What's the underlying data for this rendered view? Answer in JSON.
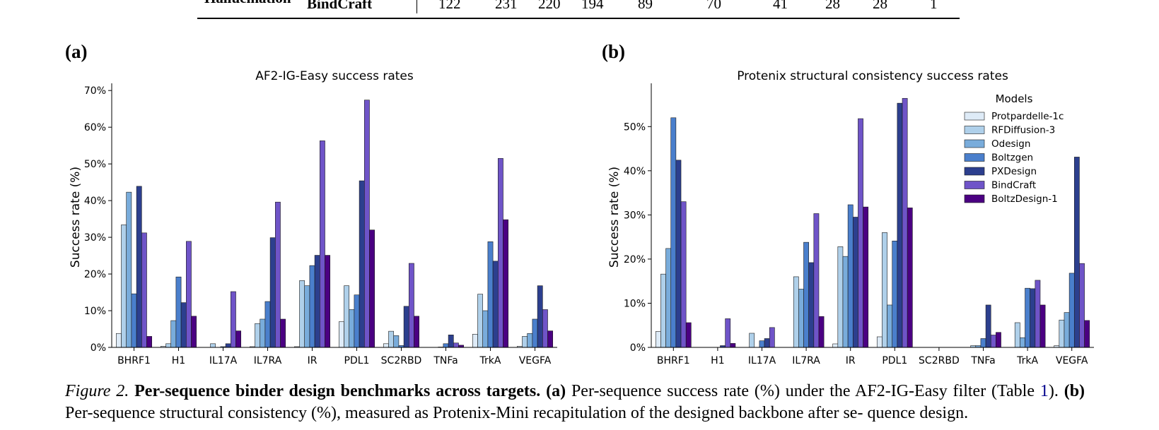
{
  "table_fragment": {
    "row_label_partial": "Hallucination",
    "row_name": "BindCraft",
    "values": [
      "122",
      "231",
      "220",
      "194",
      "89",
      "70",
      "41",
      "28",
      "28",
      "1"
    ]
  },
  "panels": {
    "a": {
      "label": "(a)"
    },
    "b": {
      "label": "(b)"
    }
  },
  "caption": {
    "figure_label": "Figure 2.",
    "title": "Per-sequence binder design benchmarks across targets.",
    "a_label": "(a)",
    "a_text": "Per-sequence success rate (%) under the AF2-IG-Easy filter",
    "table_open": "(Table ",
    "table_ref": "1",
    "table_close": ").",
    "b_label": "(b)",
    "b_text": "Per-sequence structural consistency (%), measured as Protenix-Mini recapitulation of the designed backbone after se-",
    "last_line": "quence design."
  },
  "colors": {
    "Protpardelle-1c": "#deebf7",
    "RFDiffusion-3": "#afd0ea",
    "Odesign": "#79acdb",
    "Boltzgen": "#4a7fcc",
    "PXDesign": "#2c3f8e",
    "BindCraft": "#6f54c8",
    "BoltzDesign-1": "#4b0082"
  },
  "chart_data": [
    {
      "type": "bar",
      "title": "AF2-IG-Easy success rates",
      "xlabel": "",
      "ylabel": "Success rate (%)",
      "ylim": [
        0,
        71
      ],
      "yticks": [
        0,
        10,
        20,
        30,
        40,
        50,
        60,
        70
      ],
      "ytick_labels": [
        "0%",
        "10%",
        "20%",
        "30%",
        "40%",
        "50%",
        "60%",
        "70%"
      ],
      "legend": false,
      "categories": [
        "BHRF1",
        "H1",
        "IL17A",
        "IL7RA",
        "IR",
        "PDL1",
        "SC2RBD",
        "TNFa",
        "TrkA",
        "VEGFA"
      ],
      "series": [
        {
          "name": "Protpardelle-1c",
          "values": [
            3.8,
            0.3,
            0.0,
            0.2,
            0.2,
            7.0,
            1.0,
            0.0,
            3.6,
            0.3
          ]
        },
        {
          "name": "RFDiffusion-3",
          "values": [
            33.4,
            1.0,
            1.0,
            6.5,
            18.2,
            16.8,
            4.4,
            0.0,
            14.5,
            3.0
          ]
        },
        {
          "name": "Odesign",
          "values": [
            42.3,
            7.3,
            0.0,
            7.7,
            16.8,
            10.3,
            3.2,
            0.1,
            10.0,
            3.8
          ]
        },
        {
          "name": "Boltzgen",
          "values": [
            14.6,
            19.2,
            0.2,
            12.5,
            22.3,
            14.3,
            0.5,
            1.0,
            28.8,
            7.7
          ]
        },
        {
          "name": "PXDesign",
          "values": [
            43.9,
            12.2,
            1.0,
            29.9,
            25.1,
            45.4,
            11.2,
            3.4,
            23.5,
            16.8
          ]
        },
        {
          "name": "BindCraft",
          "values": [
            31.2,
            28.9,
            15.2,
            39.6,
            56.3,
            67.4,
            22.9,
            1.2,
            51.5,
            10.3
          ]
        },
        {
          "name": "BoltzDesign-1",
          "values": [
            3.0,
            8.5,
            4.5,
            7.7,
            25.1,
            32.0,
            8.5,
            0.6,
            34.8,
            4.5
          ]
        }
      ]
    },
    {
      "type": "bar",
      "title": "Protenix structural consistency success rates",
      "xlabel": "",
      "ylabel": "Success rate (%)",
      "ylim": [
        0,
        59
      ],
      "yticks": [
        0,
        10,
        20,
        30,
        40,
        50
      ],
      "ytick_labels": [
        "0%",
        "10%",
        "20%",
        "30%",
        "40%",
        "50%"
      ],
      "legend": true,
      "legend_title": "Models",
      "legend_position": "top-right",
      "categories": [
        "BHRF1",
        "H1",
        "IL17A",
        "IL7RA",
        "IR",
        "PDL1",
        "SC2RBD",
        "TNFa",
        "TrkA",
        "VEGFA"
      ],
      "series": [
        {
          "name": "Protpardelle-1c",
          "values": [
            3.6,
            0.0,
            0.0,
            0.0,
            0.8,
            2.4,
            0.0,
            0.0,
            0.0,
            0.4
          ]
        },
        {
          "name": "RFDiffusion-3",
          "values": [
            16.6,
            0.0,
            3.2,
            16.0,
            22.8,
            26.0,
            0.0,
            0.4,
            5.6,
            6.2
          ]
        },
        {
          "name": "Odesign",
          "values": [
            22.4,
            0.0,
            0.0,
            13.2,
            20.6,
            9.6,
            0.0,
            0.4,
            2.2,
            7.9
          ]
        },
        {
          "name": "Boltzgen",
          "values": [
            52.0,
            0.0,
            1.5,
            23.8,
            32.3,
            24.1,
            0.0,
            2.0,
            13.4,
            16.8
          ]
        },
        {
          "name": "PXDesign",
          "values": [
            42.4,
            0.4,
            2.0,
            19.2,
            29.5,
            55.3,
            0.0,
            9.6,
            13.3,
            43.1
          ]
        },
        {
          "name": "BindCraft",
          "values": [
            33.0,
            6.5,
            4.5,
            30.3,
            51.8,
            56.4,
            0.0,
            2.8,
            15.2,
            19.0
          ]
        },
        {
          "name": "BoltzDesign-1",
          "values": [
            5.6,
            0.9,
            0.0,
            7.0,
            31.8,
            31.6,
            0.0,
            3.4,
            9.6,
            6.1
          ]
        }
      ]
    }
  ]
}
